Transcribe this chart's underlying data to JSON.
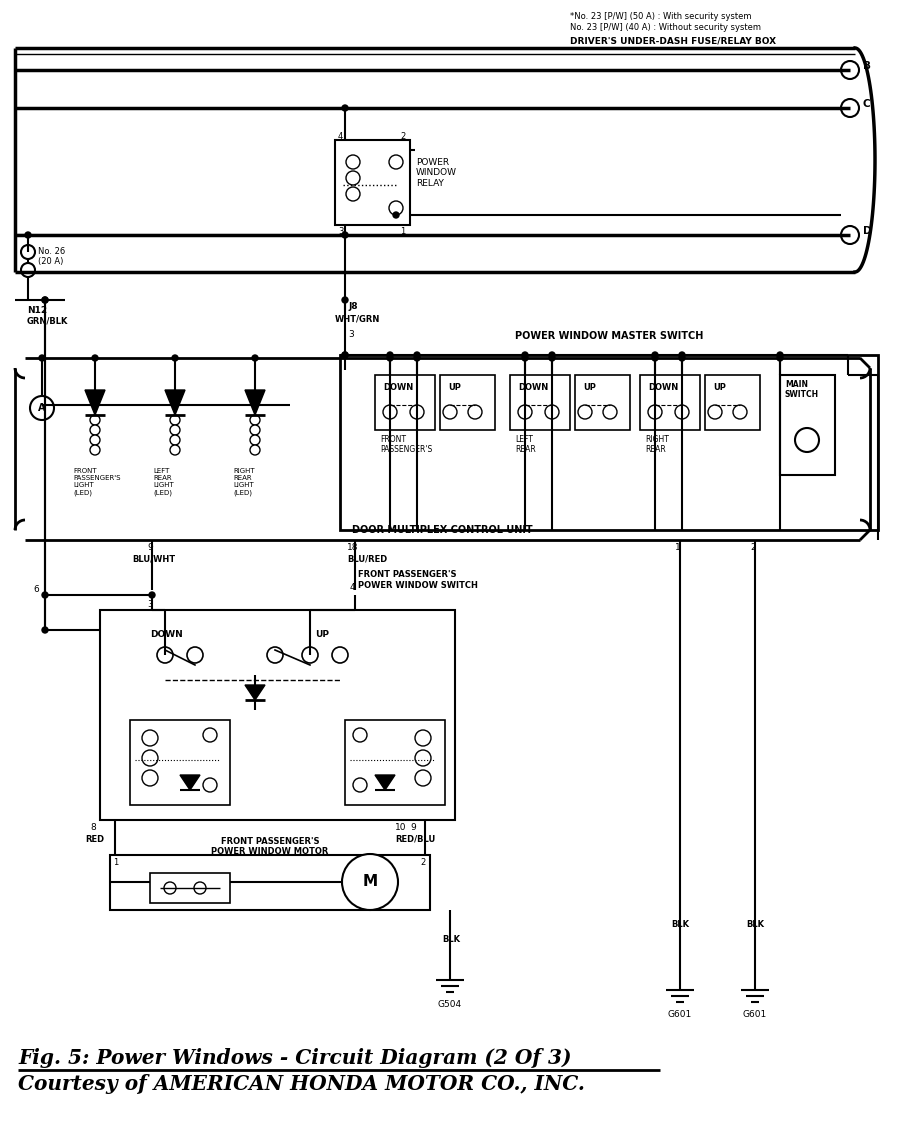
{
  "title_line1": "Fig. 5: Power Windows - Circuit Diagram (2 Of 3)",
  "title_line2": "Courtesy of AMERICAN HONDA MOTOR CO., INC.",
  "bg_color": "#ffffff",
  "line_color": "#000000",
  "note_line1": "*No. 23 [P/W] (50 A) : With security system",
  "note_line2": "No. 23 [P/W] (40 A) : Without security system",
  "box_label_top": "DRIVER'S UNDER-DASH FUSE/RELAY BOX",
  "relay_label": "POWER\nWINDOW\nRELAY",
  "master_switch_label": "POWER WINDOW MASTER SWITCH",
  "dmcu_label": "DOOR MULTIPLEX CONTROL UNIT",
  "fp_switch_label": "FRONT PASSENGER'S\nPOWER WINDOW SWITCH",
  "fp_motor_label": "FRONT PASSENGER'S\nPOWER WINDOW MOTOR",
  "fuse_label": "No. 26\n(20 A)",
  "conn_N12": "N12",
  "conn_J8": "J8",
  "wire_GRN_BLK": "GRN/BLK",
  "wire_WHT_GRN": "WHT/GRN",
  "wire_BLU_WHT": "BLU/WHT",
  "wire_BLU_RED": "BLU/RED",
  "wire_RED": "RED",
  "wire_RED_BLU": "RED/BLU",
  "wire_BLK": "BLK",
  "wire_BLK2": "BLK",
  "gnd_G504": "G504",
  "gnd_G601a": "G601",
  "gnd_G601b": "G601",
  "conn_A": "A",
  "led1_label": "FRONT\nPASSENGER'S\nLIGHT\n(LED)",
  "led2_label": "LEFT\nREAR\nLIGHT\n(LED)",
  "led3_label": "RIGHT\nREAR\nLIGHT\n(LED)",
  "font_color": "#000000"
}
